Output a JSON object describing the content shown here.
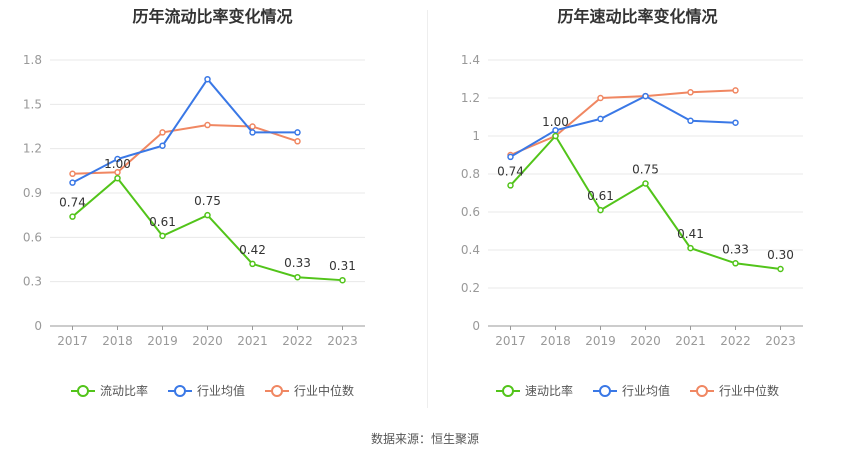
{
  "source_label": "数据来源：恒生聚源",
  "chart_data": [
    {
      "type": "line",
      "title": "历年流动比率变化情况",
      "categories": [
        "2017",
        "2018",
        "2019",
        "2020",
        "2021",
        "2022",
        "2023"
      ],
      "ylim": [
        0,
        1.8
      ],
      "yticks": [
        "0",
        "0.3",
        "0.6",
        "0.9",
        "1.2",
        "1.5",
        "1.8"
      ],
      "grid": true,
      "legend_position": "bottom",
      "series": [
        {
          "name": "流动比率",
          "color": "#52c41a",
          "values": [
            0.74,
            1.0,
            0.61,
            0.75,
            0.42,
            0.33,
            0.31
          ],
          "labels": [
            "0.74",
            "1.00",
            "0.61",
            "0.75",
            "0.42",
            "0.33",
            "0.31"
          ]
        },
        {
          "name": "行业均值",
          "color": "#3a78e6",
          "values": [
            0.97,
            1.13,
            1.22,
            1.67,
            1.31,
            1.31,
            null
          ]
        },
        {
          "name": "行业中位数",
          "color": "#f08762",
          "values": [
            1.03,
            1.04,
            1.31,
            1.36,
            1.35,
            1.25,
            null
          ]
        }
      ]
    },
    {
      "type": "line",
      "title": "历年速动比率变化情况",
      "categories": [
        "2017",
        "2018",
        "2019",
        "2020",
        "2021",
        "2022",
        "2023"
      ],
      "ylim": [
        0,
        1.4
      ],
      "yticks": [
        "0",
        "0.2",
        "0.4",
        "0.6",
        "0.8",
        "1",
        "1.2",
        "1.4"
      ],
      "grid": true,
      "legend_position": "bottom",
      "series": [
        {
          "name": "速动比率",
          "color": "#52c41a",
          "values": [
            0.74,
            1.0,
            0.61,
            0.75,
            0.41,
            0.33,
            0.3
          ],
          "labels": [
            "0.74",
            "1.00",
            "0.61",
            "0.75",
            "0.41",
            "0.33",
            "0.30"
          ]
        },
        {
          "name": "行业均值",
          "color": "#3a78e6",
          "values": [
            0.89,
            1.03,
            1.09,
            1.21,
            1.08,
            1.07,
            null
          ]
        },
        {
          "name": "行业中位数",
          "color": "#f08762",
          "values": [
            0.9,
            1.0,
            1.2,
            1.21,
            1.23,
            1.24,
            null
          ]
        }
      ]
    }
  ]
}
